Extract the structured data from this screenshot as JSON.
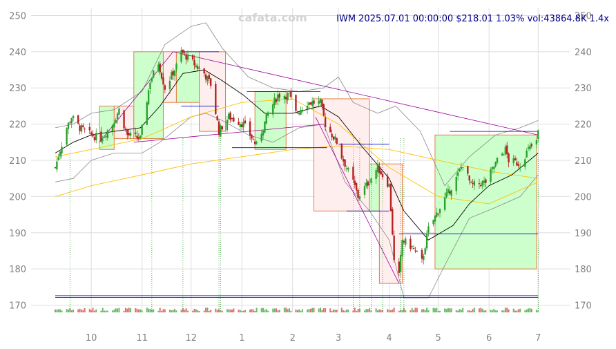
{
  "header": {
    "watermark": "cafata.com",
    "info": "IWM 2025.07.01 00:00:00 $218.01 1.03% vol:43864.8K 1.4x"
  },
  "colors": {
    "up": "#2ca02c",
    "down": "#b22222",
    "ma_short": "#000000",
    "ma_long": "#ffc000",
    "band": "#888888",
    "trend": "#990099",
    "level": "#0000cc",
    "box_up_fill": "#ccffcc",
    "box_down_fill": "#ffeeee",
    "box_border": "#e08040",
    "grid": "#dddddd",
    "vol_up": "#66bb66",
    "vol_down": "#e07070"
  },
  "chart_data": {
    "type": "candlestick",
    "symbol": "IWM",
    "ylim": [
      168,
      252
    ],
    "y_ticks": [
      170,
      180,
      190,
      200,
      210,
      220,
      230,
      240,
      250
    ],
    "x_ticks": [
      {
        "label": "10",
        "date": "2024-10-01"
      },
      {
        "label": "11",
        "date": "2024-11-01"
      },
      {
        "label": "12",
        "date": "2024-12-01"
      },
      {
        "label": "1",
        "date": "2025-01-01"
      },
      {
        "label": "2",
        "date": "2025-02-01"
      },
      {
        "label": "3",
        "date": "2025-03-01"
      },
      {
        "label": "4",
        "date": "2025-04-01"
      },
      {
        "label": "5",
        "date": "2025-05-01"
      },
      {
        "label": "6",
        "date": "2025-06-01"
      },
      {
        "label": "7",
        "date": "2025-07-01"
      }
    ],
    "x_range": [
      "2024-09-09",
      "2025-07-03"
    ],
    "price_path": [
      [
        "2024-09-09",
        208
      ],
      [
        "2024-09-12",
        213
      ],
      [
        "2024-09-16",
        219
      ],
      [
        "2024-09-19",
        222
      ],
      [
        "2024-09-24",
        219
      ],
      [
        "2024-10-01",
        217
      ],
      [
        "2024-10-07",
        216
      ],
      [
        "2024-10-14",
        220
      ],
      [
        "2024-10-18",
        224
      ],
      [
        "2024-10-23",
        217
      ],
      [
        "2024-10-31",
        216
      ],
      [
        "2024-11-06",
        232
      ],
      [
        "2024-11-11",
        237
      ],
      [
        "2024-11-15",
        230
      ],
      [
        "2024-11-22",
        236
      ],
      [
        "2024-11-25",
        240
      ],
      [
        "2024-12-02",
        237
      ],
      [
        "2024-12-09",
        234
      ],
      [
        "2024-12-13",
        231
      ],
      [
        "2024-12-18",
        218
      ],
      [
        "2024-12-24",
        222
      ],
      [
        "2025-01-02",
        220
      ],
      [
        "2025-01-10",
        214
      ],
      [
        "2025-01-17",
        223
      ],
      [
        "2025-01-23",
        228
      ],
      [
        "2025-01-30",
        228
      ],
      [
        "2025-02-03",
        223
      ],
      [
        "2025-02-10",
        226
      ],
      [
        "2025-02-18",
        226
      ],
      [
        "2025-02-21",
        220
      ],
      [
        "2025-02-28",
        215
      ],
      [
        "2025-03-03",
        211
      ],
      [
        "2025-03-10",
        204
      ],
      [
        "2025-03-13",
        200
      ],
      [
        "2025-03-18",
        203
      ],
      [
        "2025-03-25",
        208
      ],
      [
        "2025-04-01",
        203
      ],
      [
        "2025-04-03",
        190
      ],
      [
        "2025-04-04",
        182
      ],
      [
        "2025-04-07",
        178
      ],
      [
        "2025-04-09",
        188
      ],
      [
        "2025-04-15",
        186
      ],
      [
        "2025-04-21",
        182
      ],
      [
        "2025-04-25",
        191
      ],
      [
        "2025-05-02",
        197
      ],
      [
        "2025-05-12",
        205
      ],
      [
        "2025-05-16",
        209
      ],
      [
        "2025-05-21",
        203
      ],
      [
        "2025-05-30",
        204
      ],
      [
        "2025-06-06",
        210
      ],
      [
        "2025-06-11",
        213
      ],
      [
        "2025-06-13",
        210
      ],
      [
        "2025-06-20",
        209
      ],
      [
        "2025-06-25",
        213
      ],
      [
        "2025-06-30",
        215
      ],
      [
        "2025-07-01",
        218
      ]
    ],
    "ma_short": [
      [
        "2024-09-09",
        212
      ],
      [
        "2024-09-20",
        215
      ],
      [
        "2024-10-01",
        217
      ],
      [
        "2024-10-15",
        218
      ],
      [
        "2024-10-31",
        219
      ],
      [
        "2024-11-12",
        225
      ],
      [
        "2024-11-26",
        234
      ],
      [
        "2024-12-09",
        235
      ],
      [
        "2024-12-20",
        232
      ],
      [
        "2025-01-02",
        228
      ],
      [
        "2025-01-15",
        223
      ],
      [
        "2025-02-01",
        223
      ],
      [
        "2025-02-18",
        225
      ],
      [
        "2025-03-01",
        222
      ],
      [
        "2025-03-15",
        214
      ],
      [
        "2025-04-01",
        205
      ],
      [
        "2025-04-10",
        196
      ],
      [
        "2025-04-25",
        188
      ],
      [
        "2025-05-10",
        192
      ],
      [
        "2025-05-20",
        198
      ],
      [
        "2025-06-01",
        203
      ],
      [
        "2025-06-15",
        206
      ],
      [
        "2025-07-01",
        212
      ]
    ],
    "ma_long": [
      [
        "2024-09-09",
        200
      ],
      [
        "2024-10-01",
        203
      ],
      [
        "2024-11-01",
        206
      ],
      [
        "2024-12-01",
        209
      ],
      [
        "2025-01-01",
        211
      ],
      [
        "2025-02-01",
        213
      ],
      [
        "2025-03-01",
        214
      ],
      [
        "2025-04-01",
        213
      ],
      [
        "2025-05-01",
        210
      ],
      [
        "2025-06-01",
        207
      ],
      [
        "2025-07-01",
        205
      ]
    ],
    "ma_mid": [
      [
        "2024-09-09",
        211
      ],
      [
        "2024-10-01",
        213
      ],
      [
        "2024-11-01",
        216
      ],
      [
        "2024-12-01",
        222
      ],
      [
        "2025-01-01",
        226
      ],
      [
        "2025-02-01",
        227
      ],
      [
        "2025-03-01",
        220
      ],
      [
        "2025-04-01",
        208
      ],
      [
        "2025-05-01",
        200
      ],
      [
        "2025-06-01",
        198
      ],
      [
        "2025-07-01",
        204
      ]
    ],
    "band_upper": [
      [
        "2024-09-09",
        219
      ],
      [
        "2024-09-20",
        220
      ],
      [
        "2024-10-01",
        223
      ],
      [
        "2024-10-15",
        224
      ],
      [
        "2024-11-01",
        229
      ],
      [
        "2024-11-15",
        242
      ],
      [
        "2024-12-01",
        247
      ],
      [
        "2024-12-10",
        248
      ],
      [
        "2024-12-20",
        241
      ],
      [
        "2025-01-05",
        233
      ],
      [
        "2025-01-20",
        230
      ],
      [
        "2025-02-05",
        229
      ],
      [
        "2025-02-20",
        230
      ],
      [
        "2025-03-01",
        233
      ],
      [
        "2025-03-10",
        226
      ],
      [
        "2025-03-25",
        223
      ],
      [
        "2025-04-05",
        225
      ],
      [
        "2025-04-20",
        218
      ],
      [
        "2025-05-05",
        203
      ],
      [
        "2025-05-20",
        211
      ],
      [
        "2025-06-05",
        217
      ],
      [
        "2025-06-20",
        219
      ],
      [
        "2025-07-01",
        221
      ]
    ],
    "band_lower": [
      [
        "2024-09-09",
        204
      ],
      [
        "2024-09-20",
        205
      ],
      [
        "2024-10-01",
        210
      ],
      [
        "2024-10-15",
        212
      ],
      [
        "2024-11-01",
        212
      ],
      [
        "2024-11-12",
        215
      ],
      [
        "2024-12-01",
        222
      ],
      [
        "2024-12-10",
        223
      ],
      [
        "2024-12-20",
        221
      ],
      [
        "2025-01-05",
        217
      ],
      [
        "2025-01-20",
        215
      ],
      [
        "2025-02-05",
        219
      ],
      [
        "2025-02-20",
        220
      ],
      [
        "2025-03-05",
        204
      ],
      [
        "2025-03-20",
        196
      ],
      [
        "2025-04-01",
        188
      ],
      [
        "2025-04-10",
        172
      ],
      [
        "2025-04-25",
        172
      ],
      [
        "2025-05-05",
        181
      ],
      [
        "2025-05-20",
        194
      ],
      [
        "2025-06-05",
        197
      ],
      [
        "2025-06-20",
        200
      ],
      [
        "2025-07-01",
        206
      ]
    ],
    "boxes": [
      {
        "kind": "up",
        "x0": "2024-10-06",
        "x1": "2024-10-15",
        "y0": 213,
        "y1": 225
      },
      {
        "kind": "down",
        "x0": "2024-10-15",
        "x1": "2024-10-27",
        "y0": 216,
        "y1": 225
      },
      {
        "kind": "up",
        "x0": "2024-10-27",
        "x1": "2024-11-14",
        "y0": 216,
        "y1": 240
      },
      {
        "kind": "down",
        "x0": "2024-11-14",
        "x1": "2024-11-22",
        "y0": 226,
        "y1": 240
      },
      {
        "kind": "up",
        "x0": "2024-11-22",
        "x1": "2024-12-06",
        "y0": 226,
        "y1": 240
      },
      {
        "kind": "down",
        "x0": "2024-12-06",
        "x1": "2024-12-22",
        "y0": 218,
        "y1": 240
      },
      {
        "kind": "up",
        "x0": "2025-01-09",
        "x1": "2025-01-28",
        "y0": 213,
        "y1": 229
      },
      {
        "kind": "down",
        "x0": "2025-02-14",
        "x1": "2025-03-20",
        "y0": 196,
        "y1": 227
      },
      {
        "kind": "up",
        "x0": "2025-03-20",
        "x1": "2025-03-26",
        "y0": 196,
        "y1": 209
      },
      {
        "kind": "down",
        "x0": "2025-03-26",
        "x1": "2025-04-09",
        "y0": 176,
        "y1": 209
      },
      {
        "kind": "up",
        "x0": "2025-04-29",
        "x1": "2025-06-30",
        "y0": 180,
        "y1": 217
      }
    ],
    "levels": [
      {
        "x0": "2024-11-25",
        "x1": "2024-12-18",
        "y": 240
      },
      {
        "x0": "2024-11-25",
        "x1": "2024-12-18",
        "y": 225
      },
      {
        "x0": "2025-01-04",
        "x1": "2025-02-18",
        "y": 229
      },
      {
        "x0": "2024-12-26",
        "x1": "2025-02-22",
        "y": 213.5
      },
      {
        "x0": "2025-03-01",
        "x1": "2025-04-01",
        "y": 214.5
      },
      {
        "x0": "2025-03-06",
        "x1": "2025-04-01",
        "y": 196
      },
      {
        "x0": "2025-04-07",
        "x1": "2025-07-01",
        "y": 189.7
      },
      {
        "x0": "2025-05-08",
        "x1": "2025-07-01",
        "y": 218
      },
      {
        "x0": "2024-09-09",
        "x1": "2025-07-01",
        "y": 172.6
      },
      {
        "x0": "2024-09-09",
        "x1": "2025-07-01",
        "y": 172.1
      }
    ],
    "trendlines": [
      {
        "x0": "2024-10-06",
        "y0": 215,
        "x1": "2024-11-20",
        "y1": 240
      },
      {
        "x0": "2024-11-20",
        "y0": 240,
        "x1": "2025-07-01",
        "y1": 217
      },
      {
        "x0": "2024-10-27",
        "y0": 215,
        "x1": "2025-02-20",
        "y1": 220
      },
      {
        "x0": "2025-02-15",
        "y0": 222,
        "x1": "2025-04-07",
        "y1": 176
      }
    ],
    "events": [
      "2024-09-18",
      "2024-11-07",
      "2024-11-26",
      "2024-12-18",
      "2024-12-19",
      "2025-03-10",
      "2025-03-14",
      "2025-03-21",
      "2025-03-28",
      "2025-04-08",
      "2025-04-10",
      "2025-07-01"
    ]
  }
}
